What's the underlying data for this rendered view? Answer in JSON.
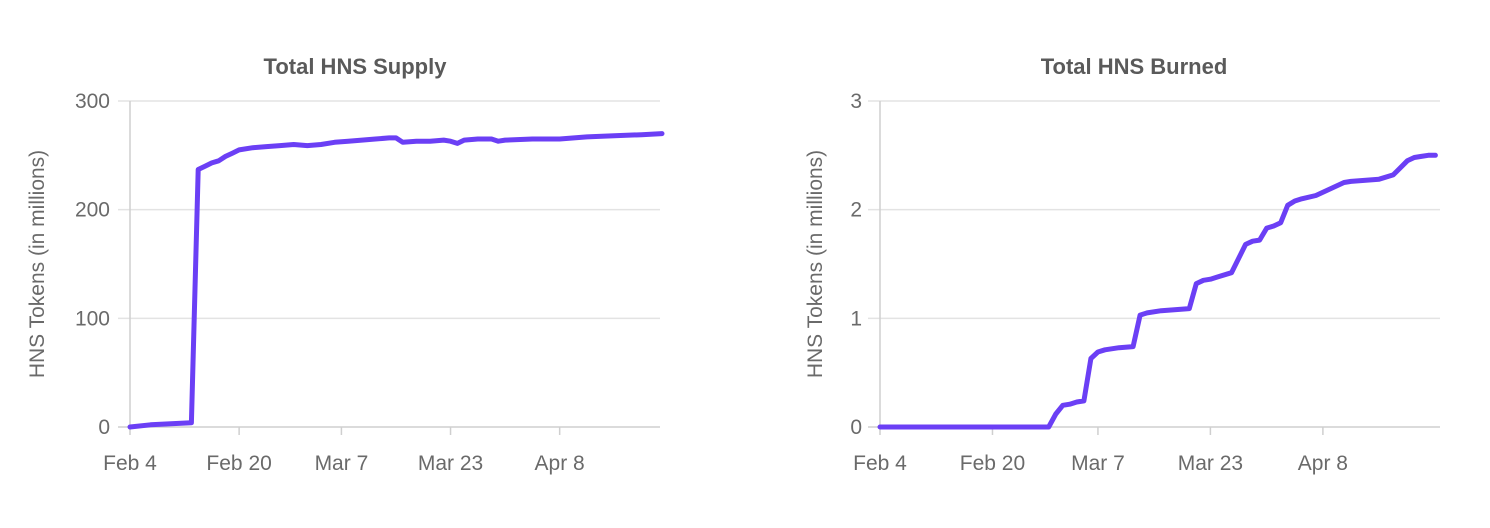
{
  "colors": {
    "series": "#6b3ff5"
  },
  "chart_data": [
    {
      "type": "line",
      "title": "Total HNS Supply",
      "xlabel": "",
      "ylabel": "HNS Tokens (in millions)",
      "x_ticks": [
        "Feb 4",
        "Feb 20",
        "Mar 7",
        "Mar 23",
        "Apr 8"
      ],
      "y_ticks": [
        "0",
        "100",
        "200",
        "300"
      ],
      "ylim": [
        0,
        300
      ],
      "grid": true,
      "series": [
        {
          "name": "",
          "x": [
            "Feb 4",
            "Feb 7",
            "Feb 10",
            "Feb 13",
            "Feb 14",
            "Feb 15",
            "Feb 16",
            "Feb 17",
            "Feb 18",
            "Feb 19",
            "Feb 20",
            "Feb 22",
            "Feb 24",
            "Feb 26",
            "Feb 28",
            "Mar 2",
            "Mar 4",
            "Mar 6",
            "Mar 8",
            "Mar 10",
            "Mar 12",
            "Mar 14",
            "Mar 15",
            "Mar 16",
            "Mar 18",
            "Mar 20",
            "Mar 22",
            "Mar 23",
            "Mar 24",
            "Mar 25",
            "Mar 27",
            "Mar 29",
            "Mar 30",
            "Mar 31",
            "Apr 4",
            "Apr 8",
            "Apr 12",
            "Apr 16",
            "Apr 20",
            "Apr 23"
          ],
          "values": [
            0,
            2,
            3,
            4,
            237,
            240,
            243,
            245,
            249,
            252,
            255,
            257,
            258,
            259,
            260,
            259,
            260,
            262,
            263,
            264,
            265,
            266,
            266,
            262,
            263,
            263,
            264,
            263,
            261,
            264,
            265,
            265,
            263,
            264,
            265,
            265,
            267,
            268,
            269,
            270
          ]
        }
      ]
    },
    {
      "type": "line",
      "title": "Total HNS Burned",
      "xlabel": "",
      "ylabel": "HNS Tokens (in millions)",
      "x_ticks": [
        "Feb 4",
        "Feb 20",
        "Mar 7",
        "Mar 23",
        "Apr 8"
      ],
      "y_ticks": [
        "0",
        "1",
        "2",
        "3"
      ],
      "ylim": [
        0,
        3
      ],
      "grid": true,
      "series": [
        {
          "name": "",
          "x": [
            "Feb 4",
            "Feb 20",
            "Feb 28",
            "Mar 1",
            "Mar 2",
            "Mar 3",
            "Mar 4",
            "Mar 5",
            "Mar 6",
            "Mar 7",
            "Mar 8",
            "Mar 10",
            "Mar 12",
            "Mar 13",
            "Mar 14",
            "Mar 16",
            "Mar 20",
            "Mar 21",
            "Mar 22",
            "Mar 23",
            "Mar 24",
            "Mar 26",
            "Mar 28",
            "Mar 29",
            "Mar 30",
            "Mar 31",
            "Apr 1",
            "Apr 2",
            "Apr 3",
            "Apr 4",
            "Apr 5",
            "Apr 7",
            "Apr 11",
            "Apr 12",
            "Apr 16",
            "Apr 18",
            "Apr 20",
            "Apr 21",
            "Apr 22",
            "Apr 23",
            "Apr 24"
          ],
          "values": [
            0,
            0,
            0,
            0.12,
            0.2,
            0.21,
            0.23,
            0.24,
            0.63,
            0.69,
            0.71,
            0.73,
            0.74,
            1.03,
            1.05,
            1.07,
            1.09,
            1.32,
            1.35,
            1.36,
            1.38,
            1.42,
            1.68,
            1.71,
            1.72,
            1.83,
            1.85,
            1.88,
            2.04,
            2.08,
            2.1,
            2.13,
            2.25,
            2.26,
            2.28,
            2.32,
            2.45,
            2.48,
            2.49,
            2.5,
            2.5
          ]
        }
      ]
    }
  ]
}
